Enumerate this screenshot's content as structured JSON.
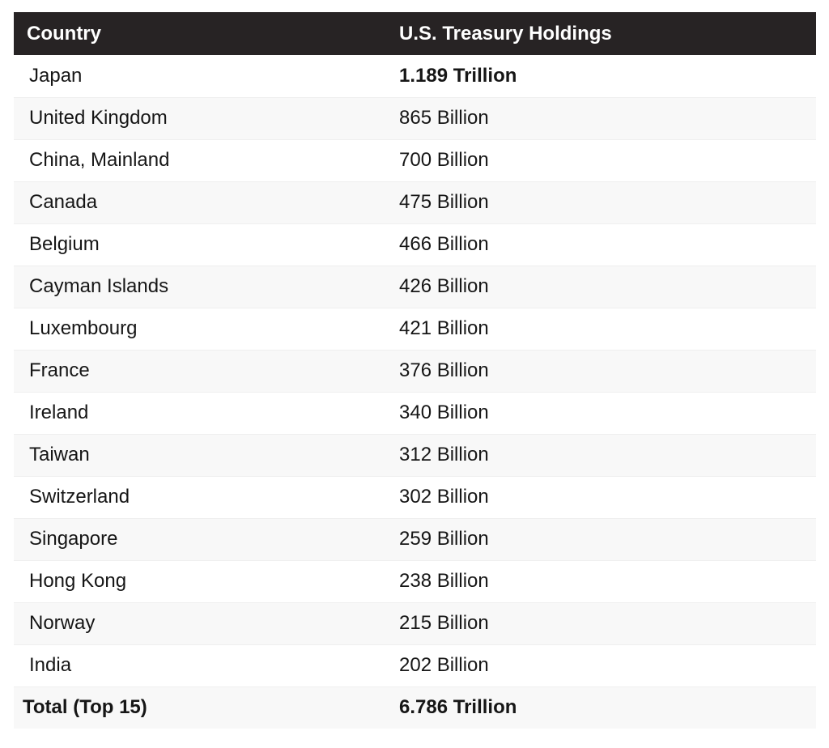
{
  "table": {
    "columns": [
      "Country",
      "U.S. Treasury Holdings"
    ],
    "rows": [
      {
        "country": "Japan",
        "holdings": "1.189 Trillion",
        "value_bold": true
      },
      {
        "country": "United Kingdom",
        "holdings": "865 Billion"
      },
      {
        "country": "China, Mainland",
        "holdings": "700 Billion"
      },
      {
        "country": "Canada",
        "holdings": "475 Billion"
      },
      {
        "country": "Belgium",
        "holdings": "466 Billion"
      },
      {
        "country": "Cayman Islands",
        "holdings": "426 Billion"
      },
      {
        "country": "Luxembourg",
        "holdings": "421 Billion"
      },
      {
        "country": "France",
        "holdings": "376 Billion"
      },
      {
        "country": "Ireland",
        "holdings": "340 Billion"
      },
      {
        "country": "Taiwan",
        "holdings": "312 Billion"
      },
      {
        "country": "Switzerland",
        "holdings": "302 Billion"
      },
      {
        "country": "Singapore",
        "holdings": "259 Billion"
      },
      {
        "country": "Hong Kong",
        "holdings": "238 Billion"
      },
      {
        "country": "Norway",
        "holdings": "215 Billion"
      },
      {
        "country": "India",
        "holdings": "202 Billion"
      }
    ],
    "total_row": {
      "country": "Total (Top 15)",
      "holdings": "6.786 Trillion"
    }
  },
  "chart_data": {
    "type": "table",
    "title": "U.S. Treasury Holdings",
    "columns": [
      "Country",
      "U.S. Treasury Holdings"
    ],
    "categories": [
      "Japan",
      "United Kingdom",
      "China, Mainland",
      "Canada",
      "Belgium",
      "Cayman Islands",
      "Luxembourg",
      "France",
      "Ireland",
      "Taiwan",
      "Switzerland",
      "Singapore",
      "Hong Kong",
      "Norway",
      "India"
    ],
    "values_billions_usd": [
      1189,
      865,
      700,
      475,
      466,
      426,
      421,
      376,
      340,
      312,
      302,
      259,
      238,
      215,
      202
    ],
    "value_labels": [
      "1.189 Trillion",
      "865 Billion",
      "700 Billion",
      "475 Billion",
      "466 Billion",
      "426 Billion",
      "421 Billion",
      "376 Billion",
      "340 Billion",
      "312 Billion",
      "302 Billion",
      "259 Billion",
      "238 Billion",
      "215 Billion",
      "202 Billion"
    ],
    "total_label": "Total (Top 15)",
    "total_billions_usd": 6786,
    "total_value_label": "6.786 Trillion",
    "layout": "zebra-striped table, dark header row, bold first data value and bold total row"
  },
  "colors": {
    "header_bg": "#272324",
    "header_text": "#ffffff",
    "row_stripe": "#f8f8f8",
    "body_text": "#161616",
    "row_border": "#efefef"
  }
}
